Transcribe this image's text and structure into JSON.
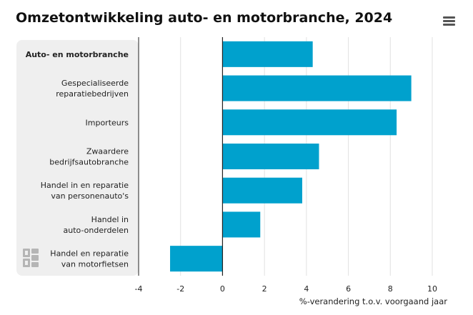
{
  "title": "Omzetontwikkeling auto- en motorbranche, 2024",
  "menu_icon": "hamburger-menu-icon",
  "logo_icon": "cbs-logo-icon",
  "colors": {
    "bar": "#00a1cd",
    "panel": "#efefef",
    "grid": "#e2e2e2",
    "axis": "#222222"
  },
  "chart_data": {
    "type": "bar",
    "orientation": "horizontal",
    "categories": [
      "Auto- en motorbranche",
      "Gespecialiseerde reparatiebedrijven",
      "Importeurs",
      "Zwaardere bedrijfsautobranche",
      "Handel in en reparatie van personenauto's",
      "Handel in auto-onderdelen",
      "Handel en reparatie van motorfietsen"
    ],
    "category_lines": [
      [
        "Auto- en motorbranche"
      ],
      [
        "Gespecialiseerde",
        "reparatiebedrijven"
      ],
      [
        "Importeurs"
      ],
      [
        "Zwaardere",
        "bedrijfsautobranche"
      ],
      [
        "Handel in en reparatie",
        "van personenauto's"
      ],
      [
        "Handel in",
        "auto-onderdelen"
      ],
      [
        "Handel en reparatie",
        "van motorfietsen"
      ]
    ],
    "highlighted_category": "Auto- en motorbranche",
    "values": [
      4.3,
      9.0,
      8.3,
      4.6,
      3.8,
      1.8,
      -2.5
    ],
    "xlim": [
      -4,
      10
    ],
    "xticks": [
      "-4",
      "-2",
      "0",
      "2",
      "4",
      "6",
      "8",
      "10"
    ],
    "xtick_values": [
      -4,
      -2,
      0,
      2,
      4,
      6,
      8,
      10
    ],
    "xlabel": "%-verandering t.o.v. voorgaand jaar",
    "grid": true
  }
}
